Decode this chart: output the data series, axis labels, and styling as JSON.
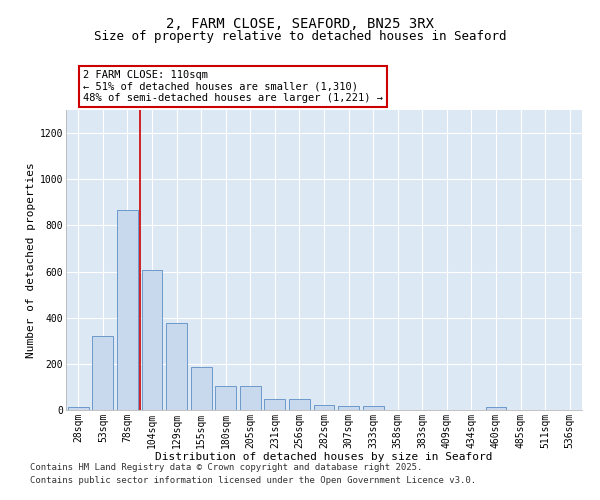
{
  "title_line1": "2, FARM CLOSE, SEAFORD, BN25 3RX",
  "title_line2": "Size of property relative to detached houses in Seaford",
  "xlabel": "Distribution of detached houses by size in Seaford",
  "ylabel": "Number of detached properties",
  "bar_color": "#c9d9ed",
  "bar_edge_color": "#5b8ec4",
  "categories": [
    "28sqm",
    "53sqm",
    "78sqm",
    "104sqm",
    "129sqm",
    "155sqm",
    "180sqm",
    "205sqm",
    "231sqm",
    "256sqm",
    "282sqm",
    "307sqm",
    "333sqm",
    "358sqm",
    "383sqm",
    "409sqm",
    "434sqm",
    "460sqm",
    "485sqm",
    "511sqm",
    "536sqm"
  ],
  "values": [
    13,
    322,
    868,
    605,
    378,
    185,
    105,
    105,
    47,
    47,
    20,
    18,
    18,
    0,
    0,
    0,
    0,
    13,
    0,
    0,
    0
  ],
  "ylim": [
    0,
    1300
  ],
  "yticks": [
    0,
    200,
    400,
    600,
    800,
    1000,
    1200
  ],
  "vline_pos": 2.5,
  "vline_color": "#cc0000",
  "annotation_text": "2 FARM CLOSE: 110sqm\n← 51% of detached houses are smaller (1,310)\n48% of semi-detached houses are larger (1,221) →",
  "annotation_box_color": "#cc0000",
  "footer_line1": "Contains HM Land Registry data © Crown copyright and database right 2025.",
  "footer_line2": "Contains public sector information licensed under the Open Government Licence v3.0.",
  "bg_color": "#dde8f5",
  "grid_color": "#c8d8ea",
  "title_fontsize": 10,
  "subtitle_fontsize": 9,
  "axis_label_fontsize": 8,
  "tick_fontsize": 7,
  "annotation_fontsize": 7.5,
  "footer_fontsize": 6.5
}
